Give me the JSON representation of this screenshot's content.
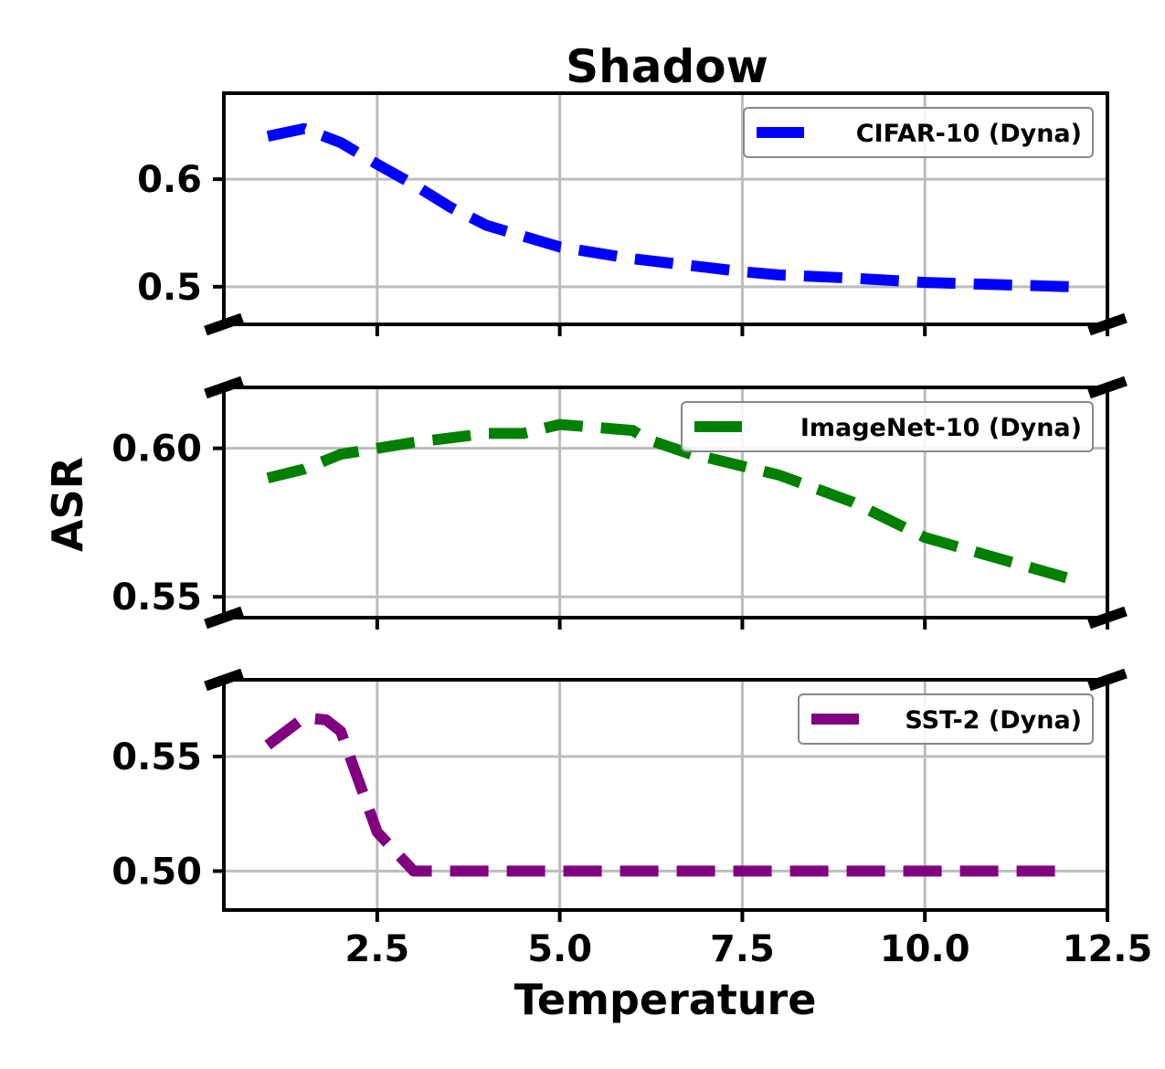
{
  "chart_data": {
    "type": "line",
    "title": "Shadow",
    "xlabel": "Temperature",
    "ylabel": "ASR",
    "xlim": [
      0.4,
      12.5
    ],
    "x_ticks": [
      2.5,
      5.0,
      7.5,
      10.0,
      12.5
    ],
    "x_tick_labels": [
      "2.5",
      "5.0",
      "7.5",
      "10.0",
      "12.5"
    ],
    "grid": true,
    "broken_axis": true,
    "panels": [
      {
        "name": "CIFAR-10 (Dyna)",
        "color": "#0000ff",
        "legend_position": "top-right",
        "ylim": [
          0.465,
          0.68
        ],
        "y_ticks": [
          0.5,
          0.6
        ],
        "y_tick_labels": [
          "0.5",
          "0.6"
        ],
        "x": [
          1.0,
          1.5,
          2.0,
          2.5,
          3.0,
          3.5,
          4.0,
          5.0,
          6.0,
          7.0,
          7.5,
          8.0,
          9.0,
          10.0,
          11.0,
          12.0
        ],
        "y": [
          0.64,
          0.647,
          0.634,
          0.614,
          0.595,
          0.574,
          0.557,
          0.537,
          0.526,
          0.518,
          0.514,
          0.511,
          0.508,
          0.504,
          0.502,
          0.5
        ]
      },
      {
        "name": "ImageNet-10 (Dyna)",
        "color": "#008000",
        "legend_position": "top-right",
        "ylim": [
          0.543,
          0.6205
        ],
        "y_ticks": [
          0.55,
          0.6
        ],
        "y_tick_labels": [
          "0.55",
          "0.60"
        ],
        "x": [
          1.0,
          1.5,
          2.0,
          3.0,
          4.0,
          4.5,
          5.0,
          6.0,
          6.2,
          6.8,
          7.0,
          8.0,
          9.0,
          10.0,
          11.0,
          12.0
        ],
        "y": [
          0.59,
          0.593,
          0.598,
          0.602,
          0.605,
          0.605,
          0.608,
          0.606,
          0.603,
          0.598,
          0.597,
          0.591,
          0.582,
          0.57,
          0.563,
          0.556
        ]
      },
      {
        "name": "SST-2 (Dyna)",
        "color": "#800080",
        "legend_position": "top-right",
        "ylim": [
          0.483,
          0.5835
        ],
        "y_ticks": [
          0.5,
          0.55
        ],
        "y_tick_labels": [
          "0.50",
          "0.55"
        ],
        "x": [
          1.0,
          1.5,
          1.8,
          2.0,
          2.5,
          3.0,
          4.0,
          5.0,
          6.0,
          7.0,
          8.0,
          9.0,
          10.0,
          11.0,
          12.0
        ],
        "y": [
          0.555,
          0.567,
          0.566,
          0.561,
          0.517,
          0.5,
          0.5,
          0.5,
          0.5,
          0.5,
          0.5,
          0.5,
          0.5,
          0.5,
          0.5
        ]
      }
    ]
  }
}
